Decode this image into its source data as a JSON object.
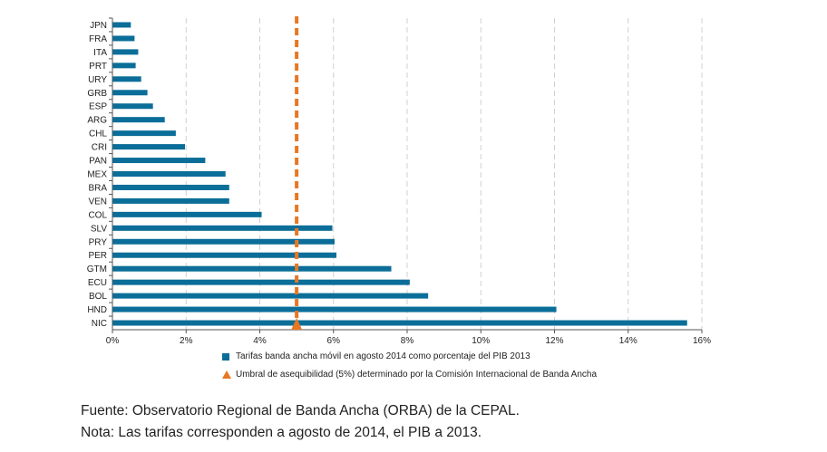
{
  "chart_data": {
    "type": "bar",
    "orientation": "horizontal",
    "categories": [
      "JPN",
      "FRA",
      "ITA",
      "PRT",
      "URY",
      "GRB",
      "ESP",
      "ARG",
      "CHL",
      "CRI",
      "PAN",
      "MEX",
      "BRA",
      "VEN",
      "COL",
      "SLV",
      "PRY",
      "PER",
      "GTM",
      "ECU",
      "BOL",
      "HND",
      "NIC"
    ],
    "series": [
      {
        "name": "Tarifas banda ancha móvil en agosto 2014 como porcentaje del PIB 2013",
        "values": [
          0.5,
          0.6,
          0.7,
          0.63,
          0.78,
          0.95,
          1.1,
          1.42,
          1.72,
          1.97,
          2.52,
          3.07,
          3.17,
          3.17,
          4.05,
          5.97,
          6.03,
          6.08,
          7.57,
          8.07,
          8.57,
          12.05,
          15.6
        ],
        "color": "#0b6e99"
      }
    ],
    "threshold": {
      "name": "Umbral de asequibilidad (5%) determinado por la Comisión Internacional de Banda Ancha",
      "value": 5,
      "color": "#e87722"
    },
    "xlim": [
      0,
      16
    ],
    "xticks": [
      "0%",
      "2%",
      "4%",
      "6%",
      "8%",
      "10%",
      "12%",
      "14%",
      "16%"
    ],
    "grid": "vertical dashed",
    "legend_position": "bottom"
  },
  "footer": {
    "source": "Fuente: Observatorio Regional de Banda Ancha (ORBA) de la CEPAL.",
    "note": "Nota: Las tarifas corresponden a agosto de 2014, el PIB a 2013."
  }
}
